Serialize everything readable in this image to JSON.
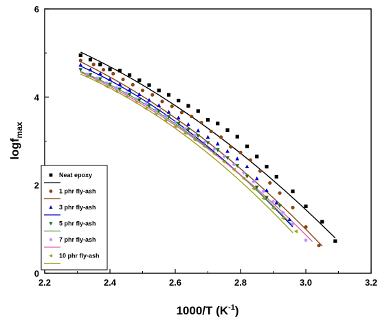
{
  "chart_data": {
    "type": "scatter",
    "xlabel": "1000/T (K",
    "xlabel_sup": "-1",
    "xlabel_tail": ")",
    "ylabel": "logf",
    "ylabel_sub": "max",
    "xlim": [
      2.2,
      3.2
    ],
    "ylim": [
      0,
      6
    ],
    "x_ticks": [
      "2.2",
      "2.4",
      "2.6",
      "2.8",
      "3.0",
      "3.2"
    ],
    "y_ticks": [
      "0",
      "2",
      "4",
      "6"
    ],
    "grid": false,
    "legend_position": "bottom-left",
    "series": [
      {
        "name": "Neat epoxy",
        "color": "#000000",
        "fit_color": "#000000",
        "marker": "square",
        "x": [
          2.31,
          2.34,
          2.37,
          2.4,
          2.43,
          2.46,
          2.49,
          2.52,
          2.55,
          2.58,
          2.61,
          2.64,
          2.67,
          2.7,
          2.73,
          2.76,
          2.79,
          2.82,
          2.85,
          2.88,
          2.91,
          2.96,
          3.0,
          3.05,
          3.09
        ],
        "y": [
          4.95,
          4.85,
          4.74,
          4.63,
          4.6,
          4.5,
          4.38,
          4.27,
          4.15,
          4.05,
          3.92,
          3.8,
          3.68,
          3.48,
          3.4,
          3.25,
          3.1,
          2.88,
          2.65,
          2.42,
          2.19,
          1.86,
          1.52,
          1.17,
          0.73
        ],
        "fit_x": [
          2.31,
          3.09
        ],
        "fit_y": [
          5.02,
          0.8
        ]
      },
      {
        "name": "1 phr fly-ash",
        "color": "#8b4513",
        "fit_color": "#8b4513",
        "marker": "circle",
        "x": [
          2.31,
          2.35,
          2.38,
          2.41,
          2.44,
          2.47,
          2.5,
          2.53,
          2.56,
          2.59,
          2.62,
          2.65,
          2.68,
          2.71,
          2.74,
          2.77,
          2.8,
          2.83,
          2.86,
          2.89,
          2.92,
          2.96,
          3.0,
          3.04
        ],
        "y": [
          4.83,
          4.74,
          4.62,
          4.53,
          4.4,
          4.28,
          4.15,
          4.05,
          3.9,
          3.79,
          3.65,
          3.56,
          3.42,
          3.22,
          3.09,
          2.87,
          2.74,
          2.57,
          2.32,
          2.05,
          1.82,
          1.49,
          1.05,
          0.63
        ],
        "fit_x": [
          2.31,
          3.05
        ],
        "fit_y": [
          4.8,
          0.62
        ]
      },
      {
        "name": "3 phr fly-ash",
        "color": "#0000cc",
        "fit_color": "#0000cc",
        "marker": "triangle-up",
        "x": [
          2.31,
          2.34,
          2.37,
          2.4,
          2.43,
          2.46,
          2.49,
          2.52,
          2.55,
          2.58,
          2.61,
          2.64,
          2.67,
          2.7,
          2.73,
          2.76,
          2.79,
          2.82,
          2.85,
          2.88,
          2.91,
          2.95
        ],
        "y": [
          4.73,
          4.62,
          4.53,
          4.4,
          4.29,
          4.16,
          4.06,
          3.93,
          3.81,
          3.66,
          3.53,
          3.38,
          3.24,
          3.09,
          2.94,
          2.77,
          2.6,
          2.42,
          2.15,
          1.88,
          1.6,
          1.22
        ],
        "fit_x": [
          2.31,
          2.96
        ],
        "fit_y": [
          4.7,
          1.05
        ]
      },
      {
        "name": "5 phr fly-ash",
        "color": "#1a6b1a",
        "fit_color": "#4a9a3a",
        "marker": "triangle-down",
        "x": [
          2.31,
          2.34,
          2.37,
          2.4,
          2.43,
          2.46,
          2.49,
          2.52,
          2.55,
          2.58,
          2.61,
          2.64,
          2.67,
          2.7,
          2.73,
          2.76,
          2.79,
          2.82,
          2.85,
          2.88,
          2.92
        ],
        "y": [
          4.62,
          4.51,
          4.41,
          4.29,
          4.18,
          4.06,
          3.93,
          3.8,
          3.68,
          3.55,
          3.4,
          3.26,
          3.12,
          2.96,
          2.8,
          2.62,
          2.44,
          2.2,
          1.95,
          1.72,
          1.53
        ],
        "fit_x": [
          2.31,
          2.96
        ],
        "fit_y": [
          4.58,
          1.08
        ]
      },
      {
        "name": "7 phr fly-ash",
        "color": "#b28cff",
        "fit_color": "#e060a0",
        "marker": "star",
        "x": [
          2.33,
          2.36,
          2.39,
          2.42,
          2.45,
          2.48,
          2.51,
          2.54,
          2.57,
          2.6,
          2.63,
          2.66,
          2.69,
          2.72,
          2.75,
          2.78,
          2.81,
          2.84,
          2.87,
          2.9,
          2.93,
          2.96,
          3.0
        ],
        "y": [
          4.52,
          4.43,
          4.32,
          4.21,
          4.09,
          3.96,
          3.84,
          3.7,
          3.56,
          3.43,
          3.28,
          3.13,
          2.98,
          2.82,
          2.65,
          2.47,
          2.28,
          2.08,
          1.86,
          1.63,
          1.38,
          1.12,
          0.75
        ],
        "fit_x": [
          2.31,
          3.02
        ],
        "fit_y": [
          4.56,
          0.72
        ]
      },
      {
        "name": "10 phr fly-ash",
        "color": "#a0a020",
        "fit_color": "#a0a020",
        "marker": "triangle-left",
        "x": [
          2.33,
          2.36,
          2.39,
          2.42,
          2.45,
          2.48,
          2.51,
          2.54,
          2.57,
          2.6,
          2.63,
          2.66,
          2.69,
          2.72,
          2.75,
          2.78,
          2.81,
          2.84,
          2.87,
          2.9,
          2.93,
          2.97
        ],
        "y": [
          4.47,
          4.36,
          4.24,
          4.13,
          4.01,
          3.88,
          3.74,
          3.61,
          3.47,
          3.33,
          3.18,
          3.03,
          2.88,
          2.71,
          2.53,
          2.35,
          2.15,
          1.92,
          1.7,
          1.48,
          1.25,
          0.95
        ],
        "fit_x": [
          2.31,
          2.96
        ],
        "fit_y": [
          4.52,
          0.92
        ]
      }
    ]
  }
}
